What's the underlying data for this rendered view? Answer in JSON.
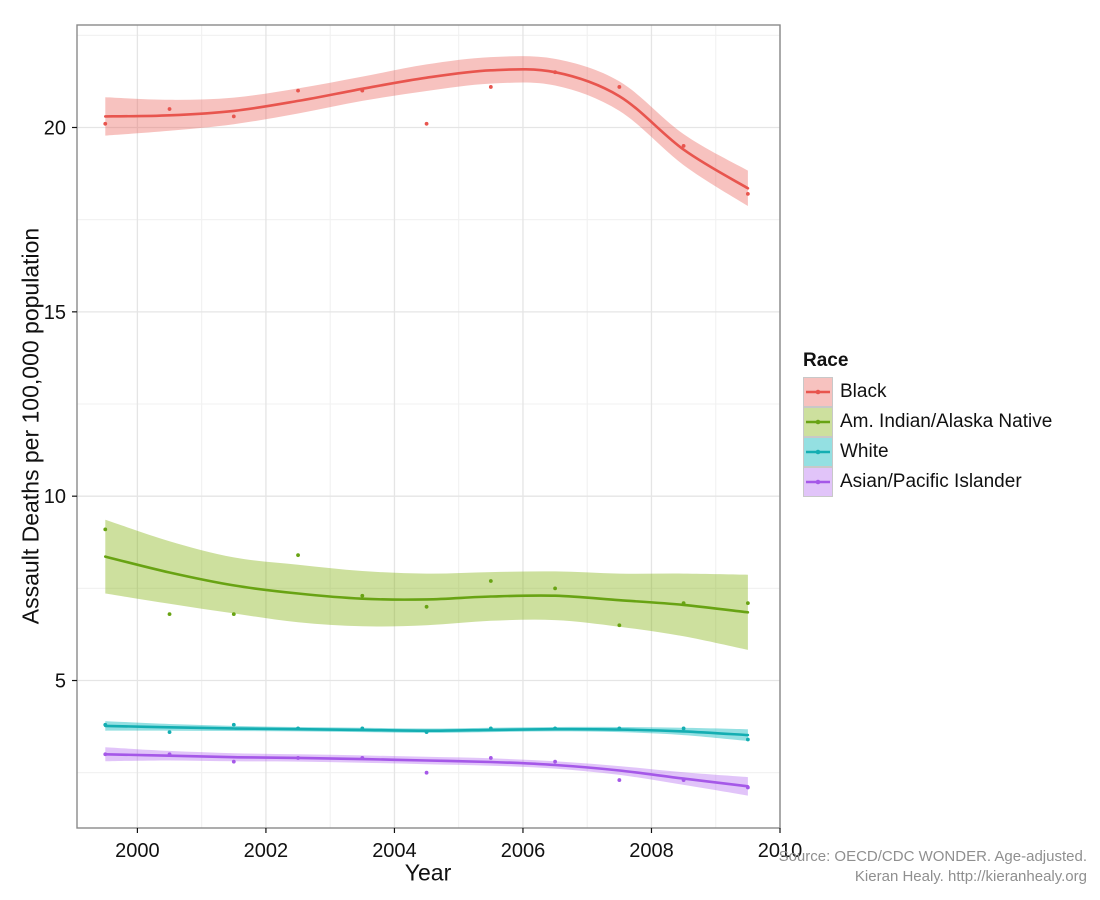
{
  "footer": {
    "line1": "Source: OECD/CDC WONDER. Age-adjusted.",
    "line2": "Kieran Healy. http://kieranhealy.org"
  },
  "chart_data": {
    "type": "scatter",
    "title": "",
    "xlabel": "Year",
    "ylabel": "Assault Deaths per 100,000 population",
    "legend_title": "Race",
    "legend_position": "right",
    "grid": "on",
    "x_ticks": [
      2000,
      2002,
      2004,
      2006,
      2008,
      2010
    ],
    "x_minor_ticks": [
      2001,
      2003,
      2005,
      2007,
      2009
    ],
    "y_ticks": [
      5,
      10,
      15,
      20
    ],
    "y_minor_ticks": [
      2.5,
      7.5,
      12.5,
      17.5,
      22.5
    ],
    "x_range": [
      1999.06,
      2010.0
    ],
    "y_range": [
      1.0,
      22.78
    ],
    "x": [
      1999.5,
      2000.5,
      2001.5,
      2002.5,
      2003.5,
      2004.5,
      2005.5,
      2006.5,
      2007.5,
      2008.5,
      2009.5
    ],
    "series": [
      {
        "name": "Black",
        "color": "#E8554E",
        "fill": "rgba(235,95,88,0.38)",
        "points": [
          20.1,
          20.5,
          20.3,
          21.0,
          21.0,
          20.1,
          21.1,
          21.5,
          21.1,
          19.5,
          18.2
        ],
        "smooth": [
          20.3,
          20.33,
          20.45,
          20.72,
          21.05,
          21.35,
          21.55,
          21.5,
          20.85,
          19.4,
          18.35
        ],
        "ci_halfwidth": [
          0.52,
          0.42,
          0.36,
          0.34,
          0.33,
          0.36,
          0.36,
          0.36,
          0.4,
          0.42,
          0.48
        ]
      },
      {
        "name": "Am. Indian/Alaska Native",
        "color": "#68A313",
        "fill": "rgba(124,174,0,0.38)",
        "points": [
          9.1,
          6.8,
          6.8,
          8.4,
          7.3,
          7.0,
          7.7,
          7.5,
          6.5,
          7.1,
          7.1
        ],
        "smooth": [
          8.36,
          7.93,
          7.58,
          7.36,
          7.22,
          7.2,
          7.28,
          7.3,
          7.18,
          7.05,
          6.85
        ],
        "ci_halfwidth": [
          1.0,
          0.85,
          0.76,
          0.78,
          0.75,
          0.7,
          0.66,
          0.66,
          0.72,
          0.85,
          1.02
        ]
      },
      {
        "name": "White",
        "color": "#14AEB2",
        "fill": "rgba(0,180,185,0.42)",
        "points": [
          3.8,
          3.6,
          3.8,
          3.7,
          3.7,
          3.6,
          3.7,
          3.7,
          3.7,
          3.7,
          3.4
        ],
        "smooth": [
          3.77,
          3.73,
          3.7,
          3.68,
          3.66,
          3.64,
          3.66,
          3.68,
          3.67,
          3.62,
          3.52
        ],
        "ci_halfwidth": [
          0.13,
          0.09,
          0.07,
          0.06,
          0.06,
          0.06,
          0.06,
          0.06,
          0.07,
          0.1,
          0.16
        ]
      },
      {
        "name": "Asian/Pacific Islander",
        "color": "#A558E8",
        "fill": "rgba(176,100,240,0.38)",
        "points": [
          3.0,
          3.0,
          2.8,
          2.9,
          2.9,
          2.5,
          2.9,
          2.8,
          2.3,
          2.3,
          2.1
        ],
        "smooth": [
          3.0,
          2.96,
          2.92,
          2.9,
          2.87,
          2.83,
          2.79,
          2.71,
          2.56,
          2.34,
          2.13
        ],
        "ci_halfwidth": [
          0.19,
          0.13,
          0.11,
          0.1,
          0.1,
          0.1,
          0.1,
          0.1,
          0.12,
          0.17,
          0.25
        ]
      }
    ]
  }
}
